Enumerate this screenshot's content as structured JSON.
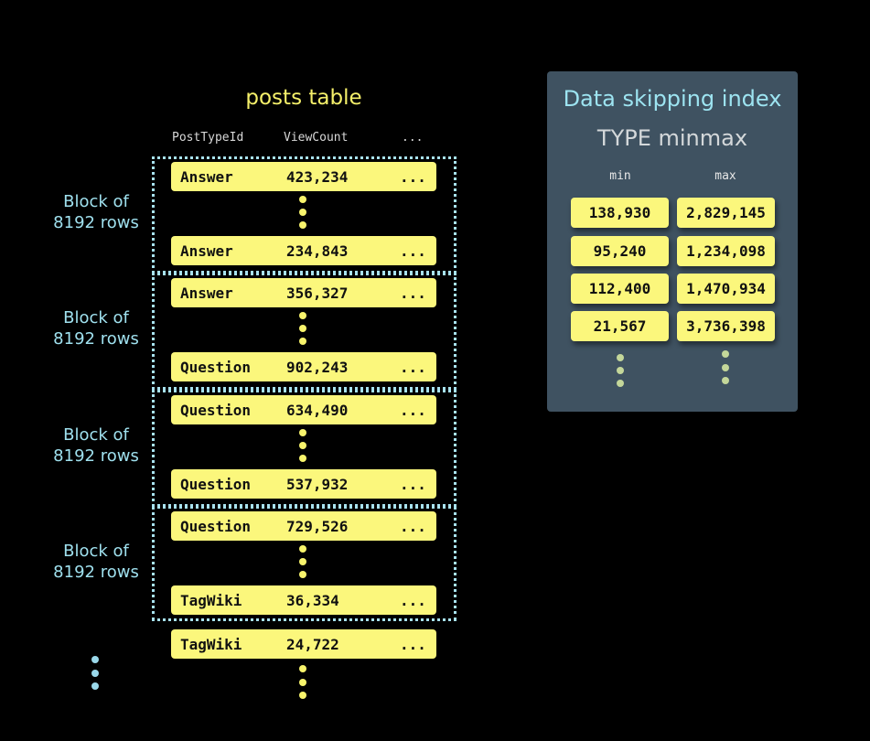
{
  "table": {
    "title": "posts table",
    "columns": [
      "PostTypeId",
      "ViewCount",
      "..."
    ],
    "blocks": [
      {
        "label": "Block of\n8192 rows",
        "first": [
          "Answer",
          "423,234",
          "..."
        ],
        "last": [
          "Answer",
          "234,843",
          "..."
        ]
      },
      {
        "label": "Block of\n8192 rows",
        "first": [
          "Answer",
          "356,327",
          "..."
        ],
        "last": [
          "Question",
          "902,243",
          "..."
        ]
      },
      {
        "label": "Block of\n8192 rows",
        "first": [
          "Question",
          "634,490",
          "..."
        ],
        "last": [
          "Question",
          "537,932",
          "..."
        ]
      },
      {
        "label": "Block of\n8192 rows",
        "first": [
          "Question",
          "729,526",
          "..."
        ],
        "last": [
          "TagWiki",
          "36,334",
          "..."
        ]
      }
    ],
    "extra_row": [
      "TagWiki",
      "24,722",
      "..."
    ]
  },
  "index": {
    "title": "Data skipping index",
    "subtitle": "TYPE minmax",
    "headers": [
      "min",
      "max"
    ],
    "rows": [
      [
        "138,930",
        "2,829,145"
      ],
      [
        "95,240",
        "1,234,098"
      ],
      [
        "112,400",
        "1,470,934"
      ],
      [
        "21,567",
        "3,736,398"
      ]
    ]
  },
  "colors": {
    "row": "#fbf77c",
    "accent": "#9fe0ee",
    "panel": "#3f5261",
    "title": "#f5f06a"
  }
}
